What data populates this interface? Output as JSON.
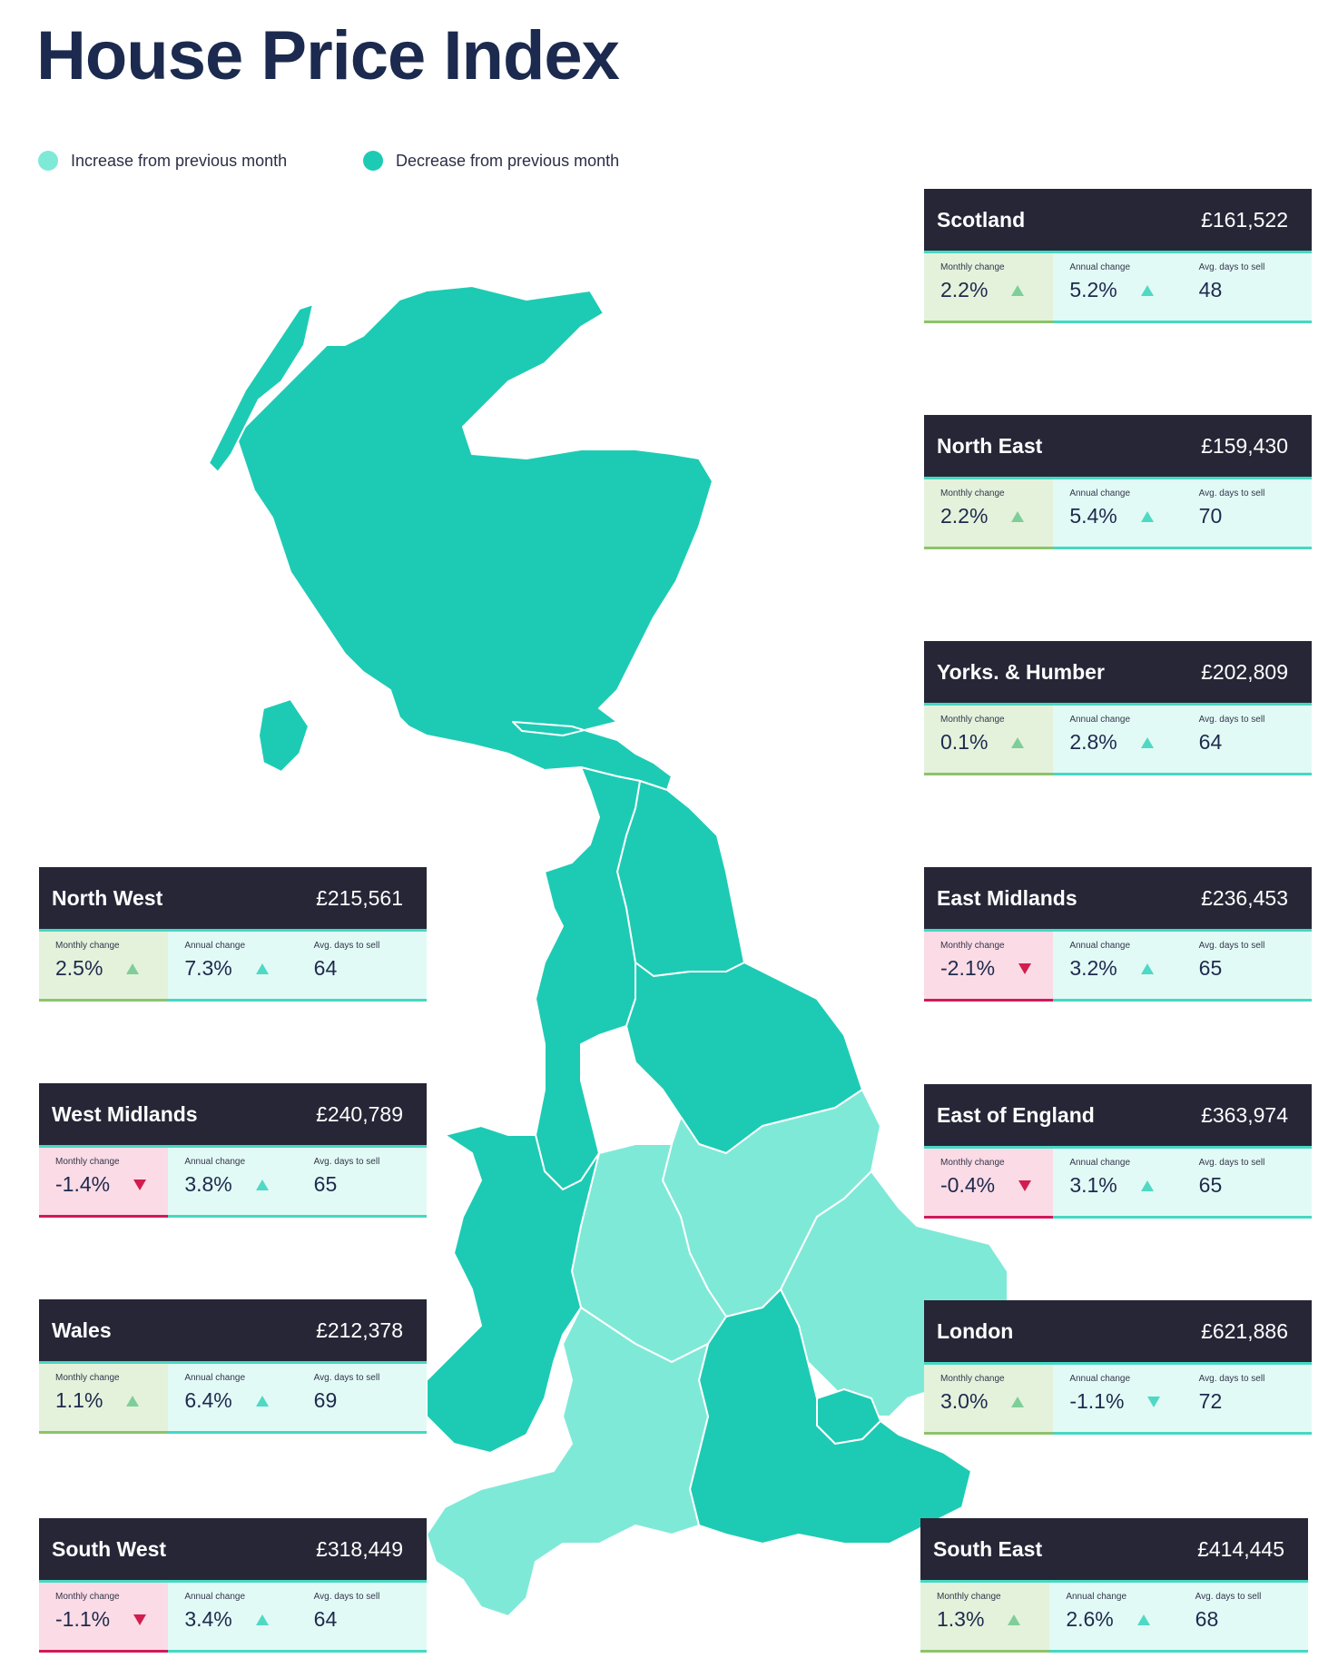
{
  "title": "House Price Index",
  "legend": {
    "increase_label": "Increase from previous month",
    "decrease_label": "Decrease from previous month",
    "increase_color": "#7fe9d8",
    "decrease_color": "#1dcbb4"
  },
  "colors": {
    "increase": "#7fe9d8",
    "decrease": "#1dcbb4",
    "card_header": "#262637",
    "up_arrow": "#7fce9a",
    "down_arrow": "#d11d4f"
  },
  "labels": {
    "monthly": "Monthly change",
    "annual": "Annual change",
    "days": "Avg. days to sell"
  },
  "regions": {
    "scotland": {
      "name": "Scotland",
      "price": "£161,522",
      "monthly": "2.2%",
      "monthly_dir": "up",
      "annual": "5.2%",
      "annual_dir": "up",
      "days": "48"
    },
    "north_east": {
      "name": "North East",
      "price": "£159,430",
      "monthly": "2.2%",
      "monthly_dir": "up",
      "annual": "5.4%",
      "annual_dir": "up",
      "days": "70"
    },
    "yorks": {
      "name": "Yorks. & Humber",
      "price": "£202,809",
      "monthly": "0.1%",
      "monthly_dir": "up",
      "annual": "2.8%",
      "annual_dir": "up",
      "days": "64"
    },
    "east_midlands": {
      "name": "East Midlands",
      "price": "£236,453",
      "monthly": "-2.1%",
      "monthly_dir": "down",
      "annual": "3.2%",
      "annual_dir": "up",
      "days": "65"
    },
    "east_england": {
      "name": "East of England",
      "price": "£363,974",
      "monthly": "-0.4%",
      "monthly_dir": "down",
      "annual": "3.1%",
      "annual_dir": "up",
      "days": "65"
    },
    "london": {
      "name": "London",
      "price": "£621,886",
      "monthly": "3.0%",
      "monthly_dir": "up",
      "annual": "-1.1%",
      "annual_dir": "down",
      "days": "72"
    },
    "south_east": {
      "name": "South East",
      "price": "£414,445",
      "monthly": "1.3%",
      "monthly_dir": "up",
      "annual": "2.6%",
      "annual_dir": "up",
      "days": "68"
    },
    "north_west": {
      "name": "North West",
      "price": "£215,561",
      "monthly": "2.5%",
      "monthly_dir": "up",
      "annual": "7.3%",
      "annual_dir": "up",
      "days": "64"
    },
    "west_midlands": {
      "name": "West Midlands",
      "price": "£240,789",
      "monthly": "-1.4%",
      "monthly_dir": "down",
      "annual": "3.8%",
      "annual_dir": "up",
      "days": "65"
    },
    "wales": {
      "name": "Wales",
      "price": "£212,378",
      "monthly": "1.1%",
      "monthly_dir": "up",
      "annual": "6.4%",
      "annual_dir": "up",
      "days": "69"
    },
    "south_west": {
      "name": "South West",
      "price": "£318,449",
      "monthly": "-1.1%",
      "monthly_dir": "down",
      "annual": "3.4%",
      "annual_dir": "up",
      "days": "64"
    }
  }
}
